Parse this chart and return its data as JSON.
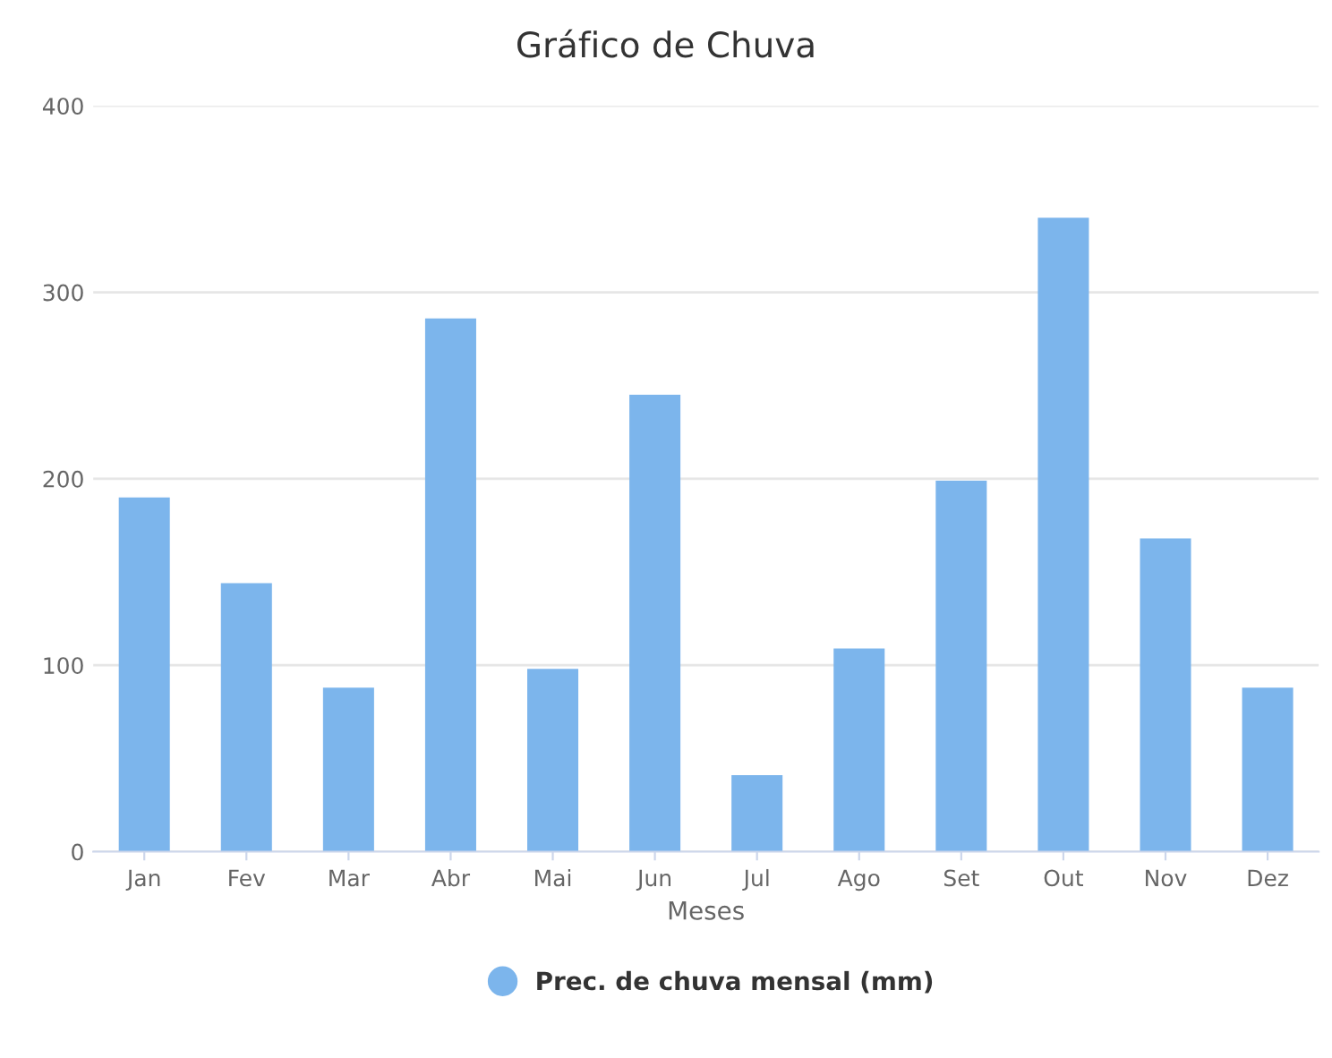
{
  "chart_data": {
    "type": "bar",
    "title": "Gráfico de Chuva",
    "xlabel": "Meses",
    "categories": [
      "Jan",
      "Fev",
      "Mar",
      "Abr",
      "Mai",
      "Jun",
      "Jul",
      "Ago",
      "Set",
      "Out",
      "Nov",
      "Dez"
    ],
    "series": [
      {
        "name": "Prec. de chuva mensal (mm)",
        "color": "#7cb5ec",
        "values": [
          190,
          144,
          88,
          286,
          98,
          245,
          41,
          109,
          199,
          340,
          168,
          88
        ]
      }
    ],
    "ylim": [
      0,
      400
    ],
    "yticks": [
      0,
      100,
      200,
      300,
      400
    ],
    "grid": "y",
    "legend": "bottom"
  }
}
